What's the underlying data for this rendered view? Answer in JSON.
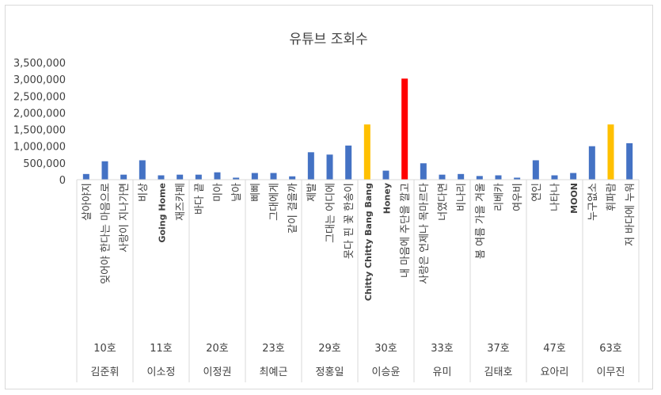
{
  "chart_data": {
    "type": "bar",
    "title": "유튜브 조회수",
    "ylim": [
      0,
      3500000
    ],
    "yticks": [
      "0",
      "500,000",
      "1,000,000",
      "1,500,000",
      "2,000,000",
      "2,500,000",
      "3,000,000",
      "3,500,000"
    ],
    "ytick_values": [
      0,
      500000,
      1000000,
      1500000,
      2000000,
      2500000,
      3000000,
      3500000
    ],
    "grid": false,
    "colors": {
      "default": "#4472c4",
      "gold": "#ffc000",
      "red": "#ff0000"
    },
    "groups": [
      {
        "episode": "10호",
        "singer": "김준휘",
        "songs": [
          {
            "name": "살아야지",
            "value": 170000,
            "color": "default"
          },
          {
            "name": "잊어야 한다는 마음으로",
            "value": 550000,
            "color": "default"
          },
          {
            "name": "사랑이 지나가면",
            "value": 150000,
            "color": "default"
          }
        ]
      },
      {
        "episode": "11호",
        "singer": "이소정",
        "songs": [
          {
            "name": "비상",
            "value": 580000,
            "color": "default"
          },
          {
            "name": "Going Home",
            "value": 130000,
            "color": "default"
          },
          {
            "name": "재즈카페",
            "value": 150000,
            "color": "default"
          }
        ]
      },
      {
        "episode": "20호",
        "singer": "이정권",
        "songs": [
          {
            "name": "바다 끝",
            "value": 150000,
            "color": "default"
          },
          {
            "name": "미아",
            "value": 220000,
            "color": "default"
          },
          {
            "name": "날아",
            "value": 60000,
            "color": "default"
          }
        ]
      },
      {
        "episode": "23호",
        "singer": "최예근",
        "songs": [
          {
            "name": "삐삐",
            "value": 200000,
            "color": "default"
          },
          {
            "name": "그대에게",
            "value": 200000,
            "color": "default"
          },
          {
            "name": "같이 걸을까",
            "value": 100000,
            "color": "default"
          }
        ]
      },
      {
        "episode": "29호",
        "singer": "정홍일",
        "songs": [
          {
            "name": "제발",
            "value": 820000,
            "color": "default"
          },
          {
            "name": "그대는 어디에",
            "value": 750000,
            "color": "default"
          },
          {
            "name": "못다 핀 꽃 한송이",
            "value": 1020000,
            "color": "default"
          }
        ]
      },
      {
        "episode": "30호",
        "singer": "이승윤",
        "songs": [
          {
            "name": "Chitty Chitty Bang Bang",
            "value": 1650000,
            "color": "gold"
          },
          {
            "name": "Honey",
            "value": 270000,
            "color": "default"
          },
          {
            "name": "내 마음에 주단을 깔고",
            "value": 3020000,
            "color": "red"
          }
        ]
      },
      {
        "episode": "33호",
        "singer": "유미",
        "songs": [
          {
            "name": "사랑은 언제나 목마르다",
            "value": 490000,
            "color": "default"
          },
          {
            "name": "너였다면",
            "value": 150000,
            "color": "default"
          },
          {
            "name": "비나리",
            "value": 170000,
            "color": "default"
          }
        ]
      },
      {
        "episode": "37호",
        "singer": "김태호",
        "songs": [
          {
            "name": "봄 여름 가을 겨울",
            "value": 110000,
            "color": "default"
          },
          {
            "name": "리베카",
            "value": 130000,
            "color": "default"
          },
          {
            "name": "여우비",
            "value": 60000,
            "color": "default"
          }
        ]
      },
      {
        "episode": "47호",
        "singer": "요아리",
        "songs": [
          {
            "name": "연인",
            "value": 580000,
            "color": "default"
          },
          {
            "name": "나타나",
            "value": 130000,
            "color": "default"
          },
          {
            "name": "MOON",
            "value": 200000,
            "color": "default"
          }
        ]
      },
      {
        "episode": "63호",
        "singer": "이무진",
        "songs": [
          {
            "name": "누구없소",
            "value": 1000000,
            "color": "default"
          },
          {
            "name": "휘파람",
            "value": 1650000,
            "color": "gold"
          },
          {
            "name": "저 바다에 누워",
            "value": 1090000,
            "color": "default"
          }
        ]
      }
    ]
  }
}
